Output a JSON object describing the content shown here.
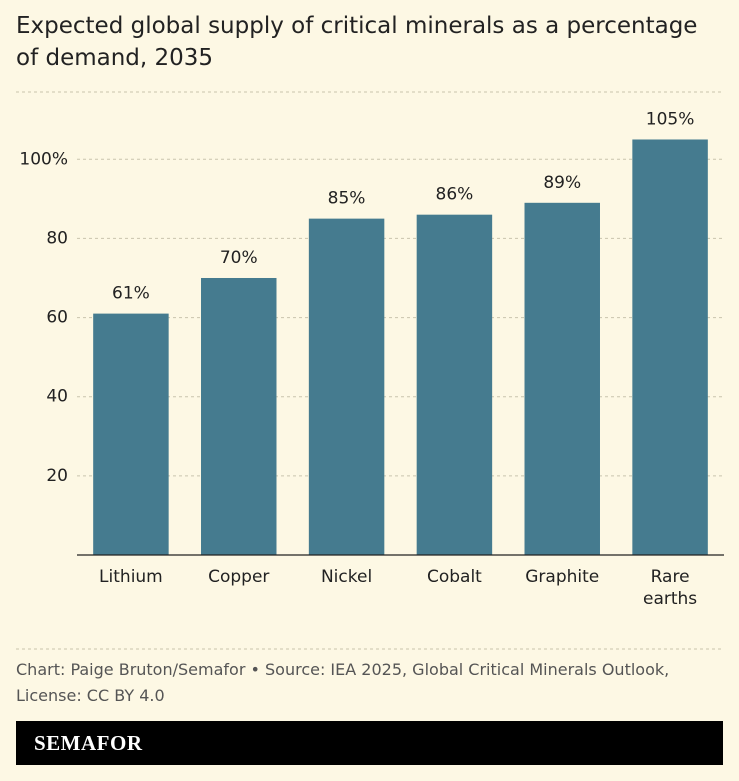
{
  "chart_data": {
    "type": "bar",
    "title": "Expected global supply of critical minerals as a percentage of demand, 2035",
    "categories": [
      "Lithium",
      "Copper",
      "Nickel",
      "Cobalt",
      "Graphite",
      "Rare earths"
    ],
    "values": [
      61,
      70,
      85,
      86,
      89,
      105
    ],
    "value_labels": [
      "61%",
      "70%",
      "85%",
      "86%",
      "89%",
      "105%"
    ],
    "color": "#457b8f",
    "ylim": [
      0,
      117
    ],
    "yticks": [
      20,
      40,
      60,
      80,
      {
        "value": 100,
        "label": "100%"
      }
    ],
    "grid": true,
    "source": "Chart: Paige Bruton/Semafor • Source: IEA 2025, Global Critical Minerals Outlook, License: CC BY 4.0",
    "brand": "SEMAFOR"
  }
}
